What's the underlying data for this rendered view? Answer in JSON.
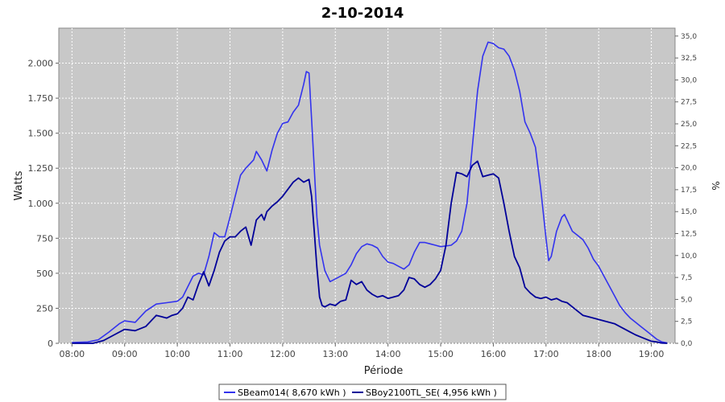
{
  "chart_data": {
    "type": "line",
    "title": "2-10-2014",
    "xlabel": "Période",
    "ylabel": "Watts",
    "y2label": "%",
    "x_ticks": [
      "08:00",
      "09:00",
      "10:00",
      "11:00",
      "12:00",
      "13:00",
      "14:00",
      "15:00",
      "16:00",
      "17:00",
      "18:00",
      "19:00"
    ],
    "x_tick_hours": [
      8,
      9,
      10,
      11,
      12,
      13,
      14,
      15,
      16,
      17,
      18,
      19
    ],
    "xlim": [
      7.75,
      19.45
    ],
    "ylim": [
      0,
      2250
    ],
    "y_ticks": [
      0,
      250,
      500,
      750,
      1000,
      1250,
      1500,
      1750,
      2000
    ],
    "y_tick_labels": [
      "0",
      "250",
      "500",
      "750",
      "1.000",
      "1.250",
      "1.500",
      "1.750",
      "2.000"
    ],
    "y2lim": [
      0,
      35.9
    ],
    "y2_ticks": [
      0,
      2.5,
      5,
      7.5,
      10,
      12.5,
      15,
      17.5,
      20,
      22.5,
      25,
      27.5,
      30,
      32.5,
      35
    ],
    "y2_tick_labels": [
      "0,0",
      "2,5",
      "5,0",
      "7,5",
      "10,0",
      "12,5",
      "15,0",
      "17,5",
      "20,0",
      "22,5",
      "25,0",
      "27,5",
      "30,0",
      "32,5",
      "35,0"
    ],
    "grid": true,
    "legend_position": "bottom",
    "series": [
      {
        "name": "SBeam014( 8,670 kWh )",
        "color": "#3333ee",
        "x": [
          8.0,
          8.3,
          8.5,
          8.7,
          8.9,
          9.0,
          9.2,
          9.4,
          9.6,
          9.8,
          10.0,
          10.1,
          10.3,
          10.4,
          10.5,
          10.6,
          10.7,
          10.8,
          10.9,
          11.0,
          11.1,
          11.2,
          11.3,
          11.45,
          11.5,
          11.6,
          11.7,
          11.8,
          11.9,
          12.0,
          12.1,
          12.2,
          12.3,
          12.4,
          12.45,
          12.5,
          12.55,
          12.6,
          12.65,
          12.7,
          12.8,
          12.9,
          13.0,
          13.1,
          13.2,
          13.3,
          13.4,
          13.5,
          13.6,
          13.7,
          13.8,
          13.9,
          14.0,
          14.1,
          14.2,
          14.3,
          14.4,
          14.5,
          14.6,
          14.7,
          14.8,
          14.9,
          15.0,
          15.2,
          15.3,
          15.4,
          15.5,
          15.6,
          15.7,
          15.8,
          15.9,
          16.0,
          16.1,
          16.2,
          16.3,
          16.4,
          16.5,
          16.6,
          16.7,
          16.8,
          16.9,
          17.0,
          17.05,
          17.1,
          17.2,
          17.3,
          17.35,
          17.4,
          17.5,
          17.6,
          17.7,
          17.8,
          17.9,
          18.0,
          18.1,
          18.2,
          18.3,
          18.4,
          18.5,
          18.6,
          18.7,
          18.8,
          18.9,
          19.0,
          19.1,
          19.2,
          19.3
        ],
        "values": [
          5,
          10,
          25,
          80,
          140,
          160,
          150,
          230,
          280,
          290,
          300,
          330,
          480,
          500,
          490,
          620,
          790,
          760,
          760,
          900,
          1050,
          1200,
          1250,
          1310,
          1370,
          1310,
          1230,
          1380,
          1500,
          1570,
          1580,
          1650,
          1700,
          1850,
          1940,
          1930,
          1600,
          1250,
          900,
          700,
          520,
          440,
          460,
          480,
          500,
          560,
          640,
          690,
          710,
          700,
          680,
          620,
          580,
          570,
          550,
          530,
          560,
          650,
          720,
          720,
          710,
          700,
          690,
          700,
          730,
          800,
          1000,
          1400,
          1800,
          2050,
          2150,
          2140,
          2110,
          2100,
          2050,
          1950,
          1800,
          1580,
          1500,
          1400,
          1100,
          750,
          590,
          620,
          800,
          900,
          920,
          880,
          800,
          770,
          740,
          680,
          600,
          550,
          480,
          410,
          340,
          270,
          220,
          180,
          150,
          120,
          90,
          60,
          30,
          10,
          3
        ]
      },
      {
        "name": "SBoy2100TL_SE( 4,956 kWh )",
        "color": "#000099",
        "x": [
          8.0,
          8.4,
          8.6,
          8.8,
          9.0,
          9.2,
          9.4,
          9.6,
          9.7,
          9.8,
          9.9,
          10.0,
          10.1,
          10.2,
          10.3,
          10.4,
          10.5,
          10.6,
          10.7,
          10.8,
          10.9,
          11.0,
          11.1,
          11.2,
          11.3,
          11.4,
          11.5,
          11.6,
          11.65,
          11.7,
          11.8,
          11.9,
          12.0,
          12.1,
          12.2,
          12.3,
          12.4,
          12.5,
          12.55,
          12.6,
          12.65,
          12.7,
          12.75,
          12.8,
          12.9,
          13.0,
          13.1,
          13.2,
          13.3,
          13.4,
          13.5,
          13.6,
          13.7,
          13.8,
          13.9,
          14.0,
          14.1,
          14.2,
          14.3,
          14.4,
          14.5,
          14.6,
          14.7,
          14.8,
          14.9,
          15.0,
          15.1,
          15.2,
          15.3,
          15.4,
          15.5,
          15.6,
          15.7,
          15.8,
          15.9,
          16.0,
          16.1,
          16.2,
          16.3,
          16.4,
          16.5,
          16.6,
          16.7,
          16.8,
          16.9,
          17.0,
          17.1,
          17.2,
          17.3,
          17.4,
          17.5,
          17.6,
          17.7,
          17.8,
          17.9,
          18.0,
          18.1,
          18.2,
          18.3,
          18.4,
          18.5,
          18.6,
          18.7,
          18.8,
          18.9,
          19.0,
          19.1,
          19.2,
          19.3
        ],
        "values": [
          0,
          0,
          20,
          60,
          100,
          90,
          120,
          200,
          190,
          180,
          200,
          210,
          250,
          330,
          310,
          420,
          510,
          410,
          520,
          650,
          730,
          760,
          760,
          800,
          830,
          700,
          880,
          920,
          880,
          940,
          980,
          1010,
          1050,
          1100,
          1150,
          1180,
          1150,
          1170,
          1050,
          800,
          540,
          330,
          270,
          260,
          280,
          270,
          300,
          310,
          450,
          420,
          440,
          380,
          350,
          330,
          340,
          320,
          330,
          340,
          380,
          470,
          460,
          420,
          400,
          420,
          460,
          520,
          700,
          1000,
          1220,
          1210,
          1190,
          1270,
          1300,
          1190,
          1200,
          1210,
          1180,
          1000,
          800,
          620,
          540,
          400,
          360,
          330,
          320,
          330,
          310,
          320,
          300,
          290,
          260,
          230,
          200,
          190,
          180,
          170,
          160,
          150,
          140,
          120,
          100,
          80,
          60,
          45,
          30,
          15,
          10,
          2,
          0
        ]
      }
    ]
  }
}
